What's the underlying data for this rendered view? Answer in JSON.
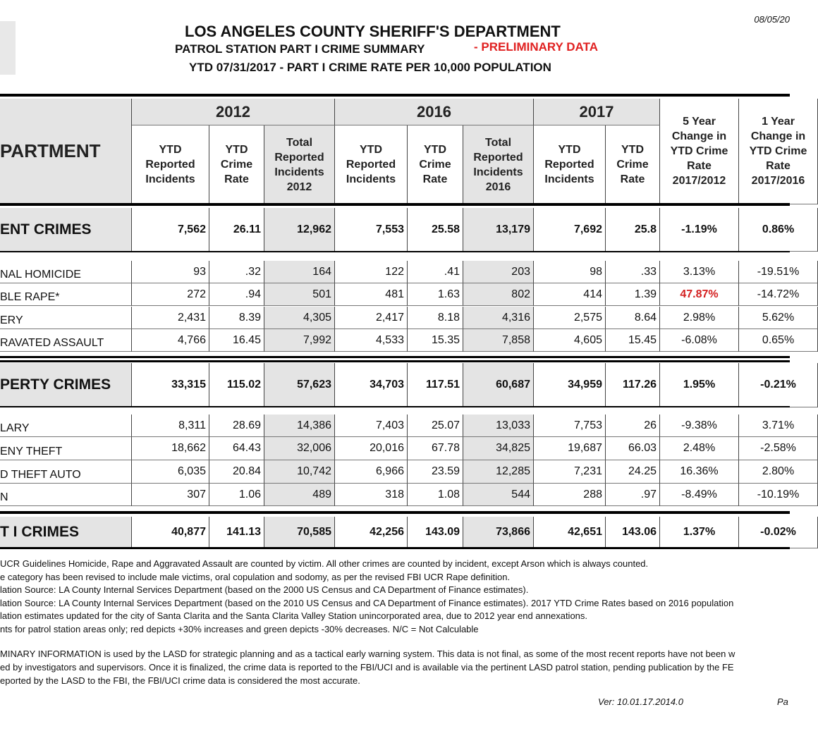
{
  "header": {
    "date": "08/05/20",
    "title": "LOS ANGELES COUNTY SHERIFF'S DEPARTMENT",
    "subtitle": "PATROL STATION PART I CRIME SUMMARY",
    "flag": "- PRELIMINARY DATA",
    "period": "YTD 07/31/2017 - PART I CRIME RATE PER 10,000 POPULATION"
  },
  "table": {
    "label_header": "PARTMENT",
    "years": [
      "2012",
      "2016",
      "2017"
    ],
    "columns": [
      "YTD Reported Incidents",
      "YTD Crime Rate",
      "Total Reported Incidents 2012",
      "YTD Reported Incidents",
      "YTD Crime Rate",
      "Total Reported Incidents 2016",
      "YTD Reported Incidents",
      "YTD Crime Rate",
      "5 Year Change in YTD Crime Rate 2017/2012",
      "1 Year Change in YTD Crime Rate 2017/2016"
    ],
    "rows": [
      [
        "ENT CRIMES",
        "7,562",
        "26.11",
        "12,962",
        "7,553",
        "25.58",
        "13,179",
        "7,692",
        "25.8",
        "-1.19%",
        "0.86%"
      ],
      [
        "NAL HOMICIDE",
        "93",
        ".32",
        "164",
        "122",
        ".41",
        "203",
        "98",
        ".33",
        "3.13%",
        "-19.51%"
      ],
      [
        "BLE RAPE*",
        "272",
        ".94",
        "501",
        "481",
        "1.63",
        "802",
        "414",
        "1.39",
        "47.87%",
        "-14.72%"
      ],
      [
        "ERY",
        "2,431",
        "8.39",
        "4,305",
        "2,417",
        "8.18",
        "4,316",
        "2,575",
        "8.64",
        "2.98%",
        "5.62%"
      ],
      [
        "RAVATED ASSAULT",
        "4,766",
        "16.45",
        "7,992",
        "4,533",
        "15.35",
        "7,858",
        "4,605",
        "15.45",
        "-6.08%",
        "0.65%"
      ],
      [
        "PERTY CRIMES",
        "33,315",
        "115.02",
        "57,623",
        "34,703",
        "117.51",
        "60,687",
        "34,959",
        "117.26",
        "1.95%",
        "-0.21%"
      ],
      [
        "LARY",
        "8,311",
        "28.69",
        "14,386",
        "7,403",
        "25.07",
        "13,033",
        "7,753",
        "26",
        "-9.38%",
        "3.71%"
      ],
      [
        "ENY THEFT",
        "18,662",
        "64.43",
        "32,006",
        "20,016",
        "67.78",
        "34,825",
        "19,687",
        "66.03",
        "2.48%",
        "-2.58%"
      ],
      [
        "D THEFT AUTO",
        "6,035",
        "20.84",
        "10,742",
        "6,966",
        "23.59",
        "12,285",
        "7,231",
        "24.25",
        "16.36%",
        "2.80%"
      ],
      [
        "N",
        "307",
        "1.06",
        "489",
        "318",
        "1.08",
        "544",
        "288",
        ".97",
        "-8.49%",
        "-10.19%"
      ],
      [
        "T I CRIMES",
        "40,877",
        "141.13",
        "70,585",
        "42,256",
        "143.09",
        "73,866",
        "42,651",
        "143.06",
        "1.37%",
        "-0.02%"
      ]
    ]
  },
  "footnotes": [
    " UCR Guidelines Homicide, Rape and Aggravated Assault are counted by victim. All other crimes are counted by incident, except Arson which is always counted.",
    "e category has been revised to include male victims, oral copulation and sodomy, as per the revised FBI UCR Rape definition.",
    "lation Source: LA County Internal Services Department (based on the 2000 US Census and CA Department of Finance estimates).",
    "lation Source: LA County Internal Services Department (based on the 2010 US Census and CA Department of Finance estimates).  2017 YTD Crime Rates based on 2016 population",
    "lation estimates updated for the city of Santa Clarita and the Santa Clarita Valley Station unincorporated area, due to 2012 year end annexations.",
    "nts for patrol station areas only; red depicts +30% increases and green depicts -30% decreases. N/C = Not Calculable"
  ],
  "notice": [
    "MINARY INFORMATION is used by the LASD for strategic planning and as a tactical early warning system. This data is not final, as some of the most recent reports have not been w",
    "ed by investigators and supervisors. Once it is finalized, the crime data is reported to the FBI/UCI and is available via the pertinent LASD patrol station, pending publication by the FE",
    "eported by the LASD to the FBI, the FBI/UCI crime data is considered the most accurate."
  ],
  "footer": {
    "version": "Ver:  10.01.17.2014.0",
    "page": "Pa"
  }
}
